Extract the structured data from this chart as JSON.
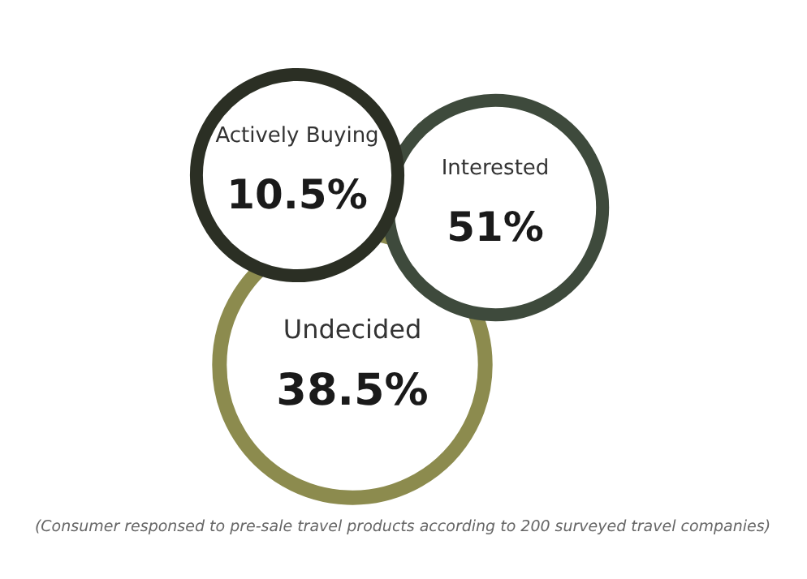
{
  "chart_data": {
    "type": "other",
    "categories": [
      "Actively Buying",
      "Interested",
      "Undecided"
    ],
    "values": [
      10.5,
      51,
      38.5
    ],
    "value_labels": [
      "10.5%",
      "51%",
      "38.5%"
    ],
    "colors": [
      "#2b2f24",
      "#3e4a3c",
      "#8c8b4e"
    ],
    "annotations": [
      "(Consumer responsed to pre-sale travel products according to 200 surveyed travel companies)"
    ]
  }
}
